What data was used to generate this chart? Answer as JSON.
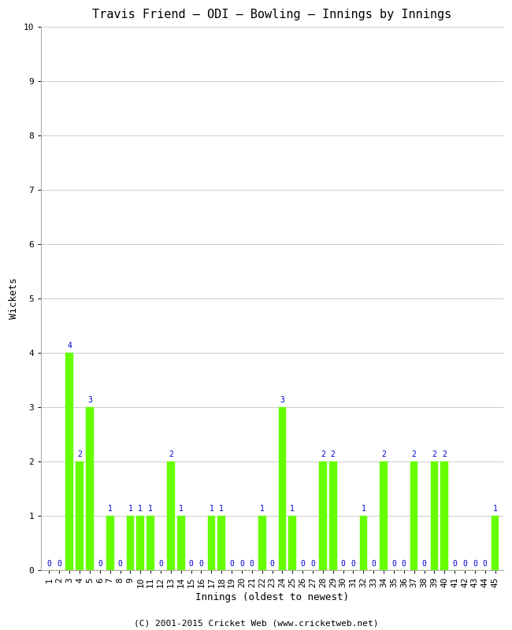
{
  "title": "Travis Friend – ODI – Bowling – Innings by Innings",
  "xlabel": "Innings (oldest to newest)",
  "ylabel": "Wickets",
  "footnote": "(C) 2001-2015 Cricket Web (www.cricketweb.net)",
  "ylim": [
    0,
    10
  ],
  "bar_color": "#66ff00",
  "label_color": "#0000cc",
  "wickets_map": {
    "1": 0,
    "2": 0,
    "3": 4,
    "4": 2,
    "5": 3,
    "6": 0,
    "7": 1,
    "8": 0,
    "9": 1,
    "10": 1,
    "11": 1,
    "12": 0,
    "13": 2,
    "14": 1,
    "15": 0,
    "16": 0,
    "17": 1,
    "18": 1,
    "19": 0,
    "20": 0,
    "21": 0,
    "22": 1,
    "23": 0,
    "24": 3,
    "25": 1,
    "26": 0,
    "27": 0,
    "28": 2,
    "29": 2,
    "30": 0,
    "31": 0,
    "32": 1,
    "33": 0,
    "34": 2,
    "35": 0,
    "36": 0,
    "37": 2,
    "38": 0,
    "39": 2,
    "40": 2,
    "41": 0,
    "42": 0,
    "43": 0,
    "44": 0,
    "45": 1
  },
  "title_fontsize": 11,
  "axis_label_fontsize": 9,
  "tick_fontsize": 8,
  "bar_label_fontsize": 7,
  "footnote_fontsize": 8,
  "background_color": "#ffffff",
  "grid_color": "#cccccc"
}
